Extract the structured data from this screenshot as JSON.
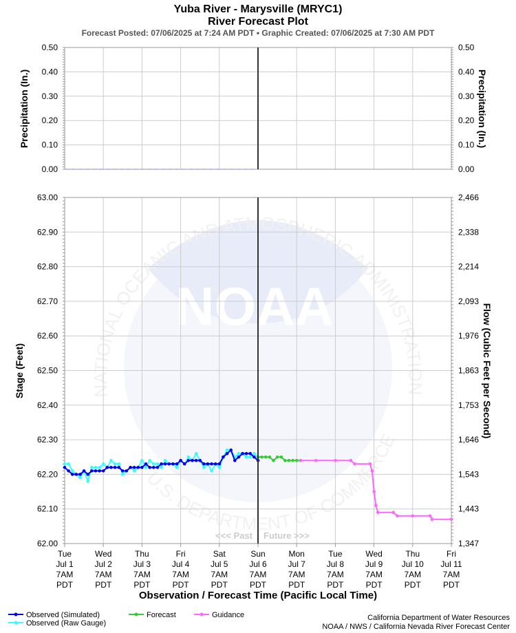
{
  "header": {
    "title": "Yuba River - Marysville (MRYC1)",
    "subtitle": "River Forecast Plot",
    "posted": "Forecast Posted: 07/06/2025 at 7:24 AM PDT  •  Graphic Created: 07/06/2025 at 7:30 AM PDT"
  },
  "chart_data": {
    "type": "line",
    "precip_panel": {
      "ylabel_left": "Precipitation (In.)",
      "ylabel_right": "Precipitation (In.)",
      "ylim": [
        0,
        0.5
      ],
      "ticks": [
        "0.00",
        "0.10",
        "0.20",
        "0.30",
        "0.40",
        "0.50"
      ],
      "values": [
        0,
        0,
        0,
        0,
        0,
        0,
        0,
        0,
        0,
        0
      ]
    },
    "stage_panel": {
      "ylabel_left": "Stage (Feet)",
      "ylabel_right": "Flow (Cubic Feet per Second)",
      "ylim": [
        62.0,
        63.0
      ],
      "left_ticks": [
        "62.00",
        "62.10",
        "62.20",
        "62.30",
        "62.40",
        "62.50",
        "62.60",
        "62.70",
        "62.80",
        "62.90",
        "63.00"
      ],
      "right_ticks": [
        "1,347",
        "1,443",
        "1,543",
        "1,646",
        "1,753",
        "1,863",
        "1,976",
        "2,093",
        "2,214",
        "2,338",
        "2,466"
      ],
      "grid": true
    },
    "x_axis": {
      "xlabel": "Observation / Forecast Time (Pacific Local Time)",
      "range_days": [
        0,
        10
      ],
      "now_day": 5,
      "tick_labels": [
        [
          "Tue",
          "Jul 1",
          "7AM",
          "PDT"
        ],
        [
          "Wed",
          "Jul 2",
          "7AM",
          "PDT"
        ],
        [
          "Thu",
          "Jul 3",
          "7AM",
          "PDT"
        ],
        [
          "Fri",
          "Jul 4",
          "7AM",
          "PDT"
        ],
        [
          "Sat",
          "Jul 5",
          "7AM",
          "PDT"
        ],
        [
          "Sun",
          "Jul 6",
          "7AM",
          "PDT"
        ],
        [
          "Mon",
          "Jul 7",
          "7AM",
          "PDT"
        ],
        [
          "Tue",
          "Jul 8",
          "7AM",
          "PDT"
        ],
        [
          "Wed",
          "Jul 9",
          "7AM",
          "PDT"
        ],
        [
          "Thu",
          "Jul 10",
          "7AM",
          "PDT"
        ],
        [
          "Fri",
          "Jul 11",
          "7AM",
          "PDT"
        ]
      ]
    },
    "past_label": "<<< Past",
    "future_label": "Future >>>",
    "series": [
      {
        "name": "Observed (Raw Gauge)",
        "color": "#33ffff",
        "x": [
          0.0,
          0.1,
          0.2,
          0.3,
          0.4,
          0.5,
          0.6,
          0.7,
          0.8,
          0.9,
          1.0,
          1.1,
          1.2,
          1.3,
          1.4,
          1.5,
          1.6,
          1.7,
          1.8,
          1.9,
          2.0,
          2.1,
          2.2,
          2.3,
          2.4,
          2.5,
          2.6,
          2.7,
          2.8,
          2.9,
          3.0,
          3.1,
          3.2,
          3.3,
          3.4,
          3.5,
          3.6,
          3.7,
          3.8,
          3.9,
          4.0,
          4.1,
          4.2,
          4.3,
          4.4,
          4.5,
          4.6,
          4.7,
          4.8,
          4.9,
          5.0
        ],
        "y": [
          62.23,
          62.23,
          62.21,
          62.2,
          62.19,
          62.21,
          62.18,
          62.22,
          62.22,
          62.22,
          62.23,
          62.22,
          62.24,
          62.23,
          62.23,
          62.2,
          62.21,
          62.22,
          62.21,
          62.22,
          62.24,
          62.22,
          62.24,
          62.23,
          62.23,
          62.22,
          62.24,
          62.23,
          62.23,
          62.22,
          62.24,
          62.23,
          62.25,
          62.24,
          62.26,
          62.24,
          62.22,
          62.23,
          62.21,
          62.23,
          62.22,
          62.25,
          62.27,
          62.27,
          62.25,
          62.26,
          62.26,
          62.25,
          62.25,
          62.26,
          62.25
        ]
      },
      {
        "name": "Observed (Simulated)",
        "color": "#0000ee",
        "x": [
          0.0,
          0.1,
          0.2,
          0.3,
          0.4,
          0.5,
          0.6,
          0.7,
          0.8,
          0.9,
          1.0,
          1.1,
          1.2,
          1.3,
          1.4,
          1.5,
          1.6,
          1.7,
          1.8,
          1.9,
          2.0,
          2.1,
          2.2,
          2.3,
          2.4,
          2.5,
          2.6,
          2.7,
          2.8,
          2.9,
          3.0,
          3.1,
          3.2,
          3.3,
          3.4,
          3.5,
          3.6,
          3.7,
          3.8,
          3.9,
          4.0,
          4.1,
          4.2,
          4.3,
          4.4,
          4.5,
          4.6,
          4.7,
          4.8,
          4.9,
          5.0
        ],
        "y": [
          62.22,
          62.21,
          62.2,
          62.2,
          62.2,
          62.21,
          62.2,
          62.21,
          62.21,
          62.21,
          62.21,
          62.22,
          62.22,
          62.22,
          62.22,
          62.21,
          62.21,
          62.22,
          62.22,
          62.22,
          62.22,
          62.23,
          62.22,
          62.22,
          62.22,
          62.23,
          62.23,
          62.23,
          62.23,
          62.23,
          62.24,
          62.23,
          62.24,
          62.24,
          62.24,
          62.24,
          62.23,
          62.23,
          62.23,
          62.23,
          62.23,
          62.25,
          62.26,
          62.27,
          62.24,
          62.25,
          62.26,
          62.26,
          62.26,
          62.25,
          62.24
        ]
      },
      {
        "name": "Forecast",
        "color": "#33cc33",
        "x": [
          5.0,
          5.1,
          5.2,
          5.3,
          5.4,
          5.5,
          5.6,
          5.7,
          5.8,
          5.9,
          6.0,
          6.1
        ],
        "y": [
          62.25,
          62.25,
          62.25,
          62.25,
          62.24,
          62.25,
          62.25,
          62.24,
          62.24,
          62.24,
          62.24,
          62.24
        ]
      },
      {
        "name": "Guidance",
        "color": "#ff66ff",
        "x": [
          6.1,
          6.5,
          7.0,
          7.4,
          7.5,
          7.9,
          7.95,
          8.0,
          8.05,
          8.1,
          8.5,
          8.6,
          9.0,
          9.45,
          9.5,
          10.0
        ],
        "y": [
          62.24,
          62.24,
          62.24,
          62.24,
          62.23,
          62.23,
          62.21,
          62.15,
          62.11,
          62.09,
          62.09,
          62.08,
          62.08,
          62.08,
          62.07,
          62.07
        ]
      }
    ],
    "legend": [
      {
        "label": "Observed (Simulated)",
        "color": "#0000ee"
      },
      {
        "label": "Observed (Raw Gauge)",
        "color": "#33ffff"
      },
      {
        "label": "Forecast",
        "color": "#33cc33"
      },
      {
        "label": "Guidance",
        "color": "#ff66ff"
      }
    ]
  },
  "credits": {
    "line1": "California Department of Water Resources",
    "line2": "NOAA / NWS / California Nevada River Forecast Center"
  },
  "watermark": {
    "logo_text": "NOAA",
    "ring_top": "NATIONAL OCEANIC AND ATMOSPHERIC ADMINISTRATION",
    "ring_bottom": "U.S. DEPARTMENT OF COMMERCE"
  }
}
